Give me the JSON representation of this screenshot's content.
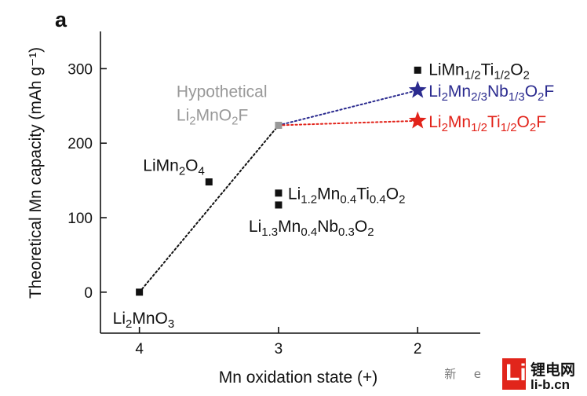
{
  "chart_data": {
    "type": "scatter",
    "panel_label": "a",
    "xlabel": "Mn oxidation state (+)",
    "ylabel": "Theoretical Mn capacity (mAh g⁻¹)",
    "xlim": [
      4.28,
      1.55
    ],
    "ylim": [
      -55,
      350
    ],
    "x_reversed": true,
    "x_ticks": [
      4,
      3,
      2
    ],
    "y_ticks": [
      0,
      100,
      200,
      300
    ],
    "grid": false,
    "legend": "none",
    "points": [
      {
        "name": "Li2MnO3",
        "x": 4,
        "y": 0,
        "marker": "square",
        "color": "#111111",
        "label_parts": [
          [
            "Li",
            ""
          ],
          [
            "2",
            "sub"
          ],
          [
            "MnO",
            ""
          ],
          [
            "3",
            "sub"
          ]
        ]
      },
      {
        "name": "LiMn2O4",
        "x": 3.5,
        "y": 148,
        "marker": "square",
        "color": "#111111",
        "label_parts": [
          [
            "LiMn",
            ""
          ],
          [
            "2",
            "sub"
          ],
          [
            "O",
            ""
          ],
          [
            "4",
            "sub"
          ]
        ]
      },
      {
        "name": "Hypothetical Li2MnO2F",
        "x": 3,
        "y": 224,
        "marker": "square",
        "color": "#999999",
        "label_title": "Hypothetical",
        "label_parts": [
          [
            "Li",
            ""
          ],
          [
            "2",
            "sub"
          ],
          [
            "MnO",
            ""
          ],
          [
            "2",
            "sub"
          ],
          [
            "F",
            ""
          ]
        ]
      },
      {
        "name": "Li1.2Mn0.4Ti0.4O2",
        "x": 3,
        "y": 133,
        "marker": "square",
        "color": "#111111",
        "label_parts": [
          [
            "Li",
            ""
          ],
          [
            "1.2",
            "sub"
          ],
          [
            "Mn",
            ""
          ],
          [
            "0.4",
            "sub"
          ],
          [
            "Ti",
            ""
          ],
          [
            "0.4",
            "sub"
          ],
          [
            "O",
            ""
          ],
          [
            "2",
            "sub"
          ]
        ]
      },
      {
        "name": "Li1.3Mn0.4Nb0.3O2",
        "x": 3,
        "y": 117,
        "marker": "square",
        "color": "#111111",
        "label_parts": [
          [
            "Li",
            ""
          ],
          [
            "1.3",
            "sub"
          ],
          [
            "Mn",
            ""
          ],
          [
            "0.4",
            "sub"
          ],
          [
            "Nb",
            ""
          ],
          [
            "0.3",
            "sub"
          ],
          [
            "O",
            ""
          ],
          [
            "2",
            "sub"
          ]
        ]
      },
      {
        "name": "LiMn1/2Ti1/2O2",
        "x": 2,
        "y": 298,
        "marker": "square",
        "color": "#111111",
        "label_parts": [
          [
            "LiMn",
            ""
          ],
          [
            "1/2",
            "sub"
          ],
          [
            "Ti",
            ""
          ],
          [
            "1/2",
            "sub"
          ],
          [
            "O",
            ""
          ],
          [
            "2",
            "sub"
          ]
        ]
      },
      {
        "name": "Li2Mn2/3Nb1/3O2F",
        "x": 2,
        "y": 271,
        "marker": "star",
        "color": "#2b2b8f",
        "label_parts": [
          [
            "Li",
            ""
          ],
          [
            "2",
            "sub"
          ],
          [
            "Mn",
            ""
          ],
          [
            "2/3",
            "sub"
          ],
          [
            "Nb",
            ""
          ],
          [
            "1/3",
            "sub"
          ],
          [
            "O",
            ""
          ],
          [
            "2",
            "sub"
          ],
          [
            "F",
            ""
          ]
        ]
      },
      {
        "name": "Li2Mn1/2Ti1/2O2F",
        "x": 2,
        "y": 230,
        "marker": "star",
        "color": "#e2231a",
        "label_parts": [
          [
            "Li",
            ""
          ],
          [
            "2",
            "sub"
          ],
          [
            "Mn",
            ""
          ],
          [
            "1/2",
            "sub"
          ],
          [
            "Ti",
            ""
          ],
          [
            "1/2",
            "sub"
          ],
          [
            "O",
            ""
          ],
          [
            "2",
            "sub"
          ],
          [
            "F",
            ""
          ]
        ]
      }
    ],
    "lines": [
      {
        "from": [
          4,
          0
        ],
        "to": [
          3,
          224
        ],
        "color": "#111111",
        "style": "dotted"
      },
      {
        "from": [
          3,
          224
        ],
        "to": [
          2,
          271
        ],
        "color": "#2b2b8f",
        "style": "dotted"
      },
      {
        "from": [
          3,
          224
        ],
        "to": [
          2,
          230
        ],
        "color": "#e2231a",
        "style": "dotted"
      }
    ]
  },
  "watermark": {
    "wechat_text": "新   e  ",
    "logo_letter": "Li",
    "brand_cn": "锂电网",
    "url": "li-b.cn"
  }
}
